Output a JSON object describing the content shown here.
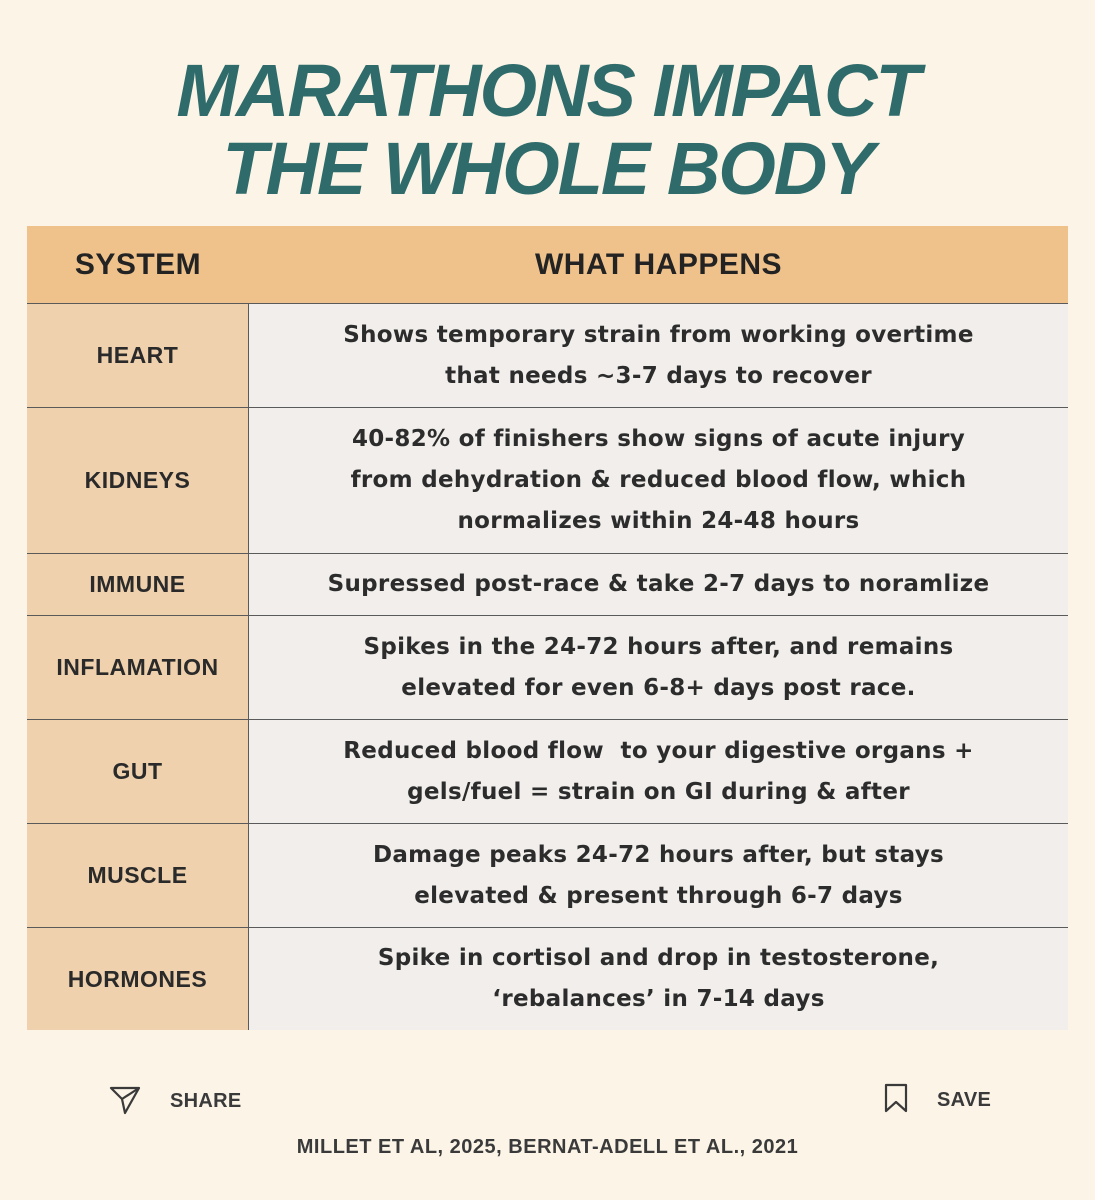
{
  "title": {
    "line1": "MARATHONS IMPACT",
    "line2": "THE WHOLE BODY"
  },
  "table": {
    "headers": {
      "system": "SYSTEM",
      "what": "WHAT HAPPENS"
    },
    "rows": [
      {
        "system": "HEART",
        "what": [
          "Shows temporary strain from working overtime",
          "that needs ~3-7 days to recover"
        ]
      },
      {
        "system": "KIDNEYS",
        "what": [
          "40-82% of finishers show signs of acute injury",
          "from dehydration & reduced blood flow, which",
          "normalizes within 24-48 hours"
        ]
      },
      {
        "system": "IMMUNE",
        "what": [
          "Supressed post-race & take 2-7 days to noramlize"
        ]
      },
      {
        "system": "INFLAMATION",
        "what": [
          "Spikes in the 24-72 hours after, and remains",
          "elevated for even 6-8+ days post race."
        ]
      },
      {
        "system": "GUT",
        "what": [
          "Reduced blood flow  to your digestive organs +",
          "gels/fuel = strain on GI during & after"
        ]
      },
      {
        "system": "MUSCLE",
        "what": [
          "Damage peaks 24-72 hours after, but stays",
          "elevated & present through 6-7 days"
        ]
      },
      {
        "system": "HORMONES",
        "what": [
          "Spike in cortisol and drop in testosterone,",
          "‘rebalances’ in 7-14 days"
        ]
      }
    ]
  },
  "footer": {
    "share_label": "SHARE",
    "save_label": "SAVE",
    "share_icon": "paper-plane-icon",
    "save_icon": "bookmark-icon",
    "citation": "MILLET ET AL, 2025, BERNAT-ADELL ET AL., 2021"
  },
  "colors": {
    "title": "#2e6b6a",
    "header_bg": "#efc28c",
    "system_bg": "#efd1ad",
    "cell_bg": "#f1eeeb",
    "page_bg": "#fbf4e7"
  }
}
